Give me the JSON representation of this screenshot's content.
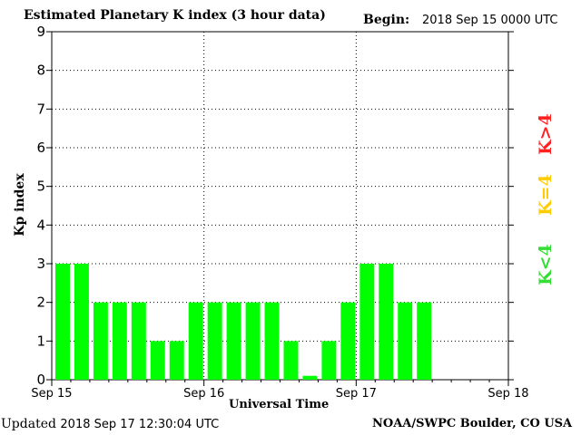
{
  "header": {
    "title": "Estimated Planetary K index (3 hour data)",
    "begin_label": "Begin:",
    "begin_value": "2018 Sep 15 0000 UTC"
  },
  "footer": {
    "updated_label": "Updated",
    "updated_value": "2018 Sep 17 12:30:04 UTC",
    "credit": "NOAA/SWPC Boulder, CO USA"
  },
  "legend": {
    "high": "K>4",
    "equal": "K=4",
    "low": "K<4"
  },
  "colors": {
    "low": "#00ff00",
    "equal": "#ffcc00",
    "high": "#ff0000"
  },
  "chart_data": {
    "type": "bar",
    "title": "Estimated Planetary K index (3 hour data)",
    "xlabel": "Universal Time",
    "ylabel": "Kp index",
    "ylim": [
      0,
      9
    ],
    "yticks": [
      "0",
      "1",
      "2",
      "3",
      "4",
      "5",
      "6",
      "7",
      "8",
      "9"
    ],
    "xticks": [
      "Sep 15",
      "Sep 16",
      "Sep 17",
      "Sep 18"
    ],
    "slots_per_day": 8,
    "grid": true,
    "values": [
      3,
      3,
      2,
      2,
      2,
      1,
      1,
      2,
      2,
      2,
      2,
      2,
      1,
      0.1,
      1,
      2,
      3,
      3,
      2,
      2
    ]
  }
}
